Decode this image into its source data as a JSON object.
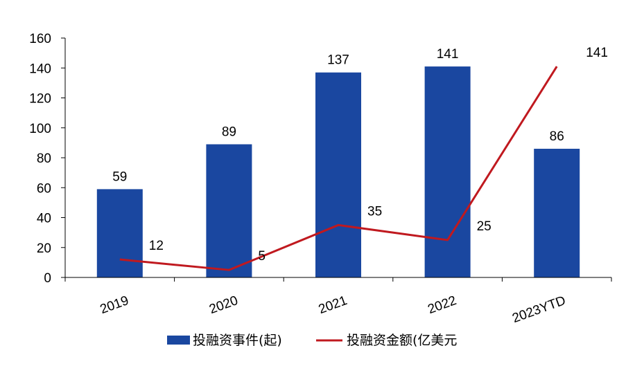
{
  "chart_data": {
    "type": "bar",
    "categories": [
      "2019",
      "2020",
      "2021",
      "2022",
      "2023YTD"
    ],
    "series": [
      {
        "name": "投融资事件(起)",
        "type": "bar",
        "values": [
          59,
          89,
          137,
          141,
          86
        ],
        "color": "#1a47a0"
      },
      {
        "name": "投融资金额(亿美元",
        "type": "line",
        "values": [
          12,
          5,
          35,
          25,
          141
        ],
        "color": "#c0191f"
      }
    ],
    "yticks": [
      "0",
      "20",
      "40",
      "60",
      "80",
      "100",
      "120",
      "140",
      "160"
    ],
    "ylim": [
      0,
      160
    ],
    "grid": false,
    "legend": "bottom-center"
  }
}
